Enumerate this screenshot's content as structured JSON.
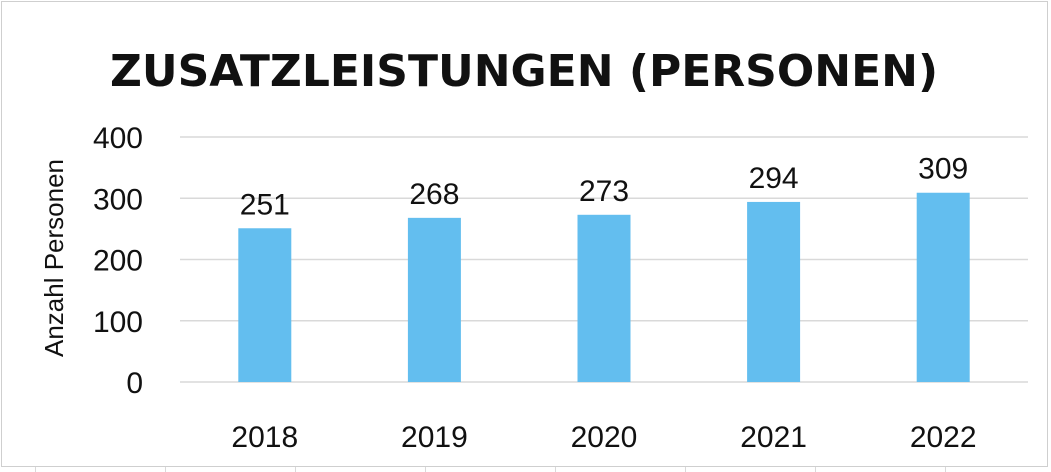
{
  "chart_data": {
    "type": "bar",
    "title": "ZUSATZLEISTUNGEN (PERSONEN)",
    "xlabel": "",
    "ylabel": "Anzahl Personen",
    "categories": [
      "2018",
      "2019",
      "2020",
      "2021",
      "2022"
    ],
    "values": [
      251,
      268,
      273,
      294,
      309
    ],
    "yticks": [
      "0",
      "100",
      "200",
      "300",
      "400"
    ],
    "ylim": [
      0,
      400
    ],
    "grid": true,
    "legend": "none",
    "data_labels": [
      "251",
      "268",
      "273",
      "294",
      "309"
    ],
    "colors": {
      "bar": "#63BEEF",
      "grid": "#d9d9d9",
      "text": "#111111"
    }
  }
}
